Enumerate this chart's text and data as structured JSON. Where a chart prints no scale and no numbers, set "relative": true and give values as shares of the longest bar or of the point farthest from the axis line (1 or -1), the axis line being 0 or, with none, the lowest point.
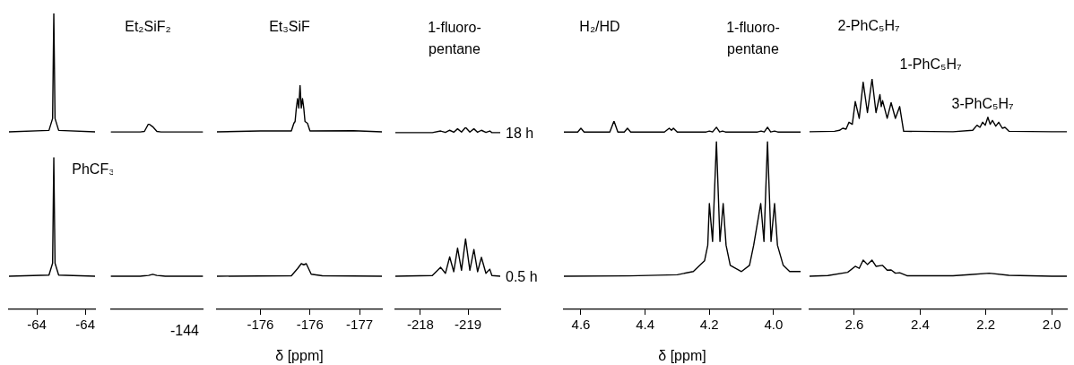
{
  "chart_data": [
    {
      "type": "line",
      "relative": true,
      "xlim": [
        -63.57,
        -64.28
      ],
      "xticks": [
        {
          "value": -63.8,
          "label": "-64"
        },
        {
          "value": -64.2,
          "label": "-64"
        }
      ],
      "annotations": [
        "PhCF₃"
      ],
      "series": [
        {
          "color": "#000000",
          "x": [
            -63.57,
            -63.9,
            -63.93,
            -63.94,
            -63.95,
            -63.98,
            -64.28
          ],
          "values": [
            0.6,
            0.605,
            0.645,
            1,
            0.645,
            0.605,
            0.6
          ]
        },
        {
          "color": "#000000",
          "x": [
            -63.57,
            -63.9,
            -63.93,
            -63.94,
            -63.95,
            -63.98,
            -64.28
          ],
          "values": [
            0.112,
            0.116,
            0.156,
            0.512,
            0.156,
            0.116,
            0.112
          ]
        }
      ]
    },
    {
      "type": "line",
      "relative": true,
      "categories": [
        null,
        null,
        null,
        null,
        null,
        null,
        null,
        null,
        null,
        null,
        null,
        null,
        null,
        null,
        null,
        null,
        null,
        null,
        null,
        null,
        null,
        null,
        null
      ],
      "annotations": [
        "Et₂SiF₂",
        "-144"
      ],
      "series": [
        {
          "color": "#000000",
          "values": [
            0.956,
            0.956,
            0.956,
            0.956,
            0.956,
            0.956,
            0.956,
            0.956,
            0.959,
            1,
            0.984,
            0.959,
            0.956,
            0.956,
            0.956,
            0.956,
            0.956,
            0.956,
            0.956,
            0.956,
            0.956,
            0.956,
            0.956
          ]
        },
        {
          "color": "#000000",
          "values": [
            0.179,
            0.179,
            0.179,
            0.179,
            0.179,
            0.179,
            0.179,
            0.179,
            0.181,
            0.183,
            0.189,
            0.183,
            0.181,
            0.179,
            0.179,
            0.179,
            0.179,
            0.179,
            0.179,
            0.179,
            0.179,
            0.179,
            0.179
          ]
        }
      ]
    },
    {
      "type": "line",
      "relative": true,
      "xlim": [
        -175.45,
        -176.78
      ],
      "xlabel": "δ [ppm]",
      "xticks": [
        {
          "value": -175.8,
          "label": "-176"
        },
        {
          "value": -176.2,
          "label": "-176"
        },
        {
          "value": -176.6,
          "label": "-177"
        }
      ],
      "annotations": [
        "Et₃SiF"
      ],
      "series": [
        {
          "color": "#000000",
          "x": [
            -175.45,
            -175.8,
            -176.05,
            -176.07,
            -176.08,
            -176.09,
            -176.1,
            -176.11,
            -176.12,
            -176.13,
            -176.14,
            -176.15,
            -176.16,
            -176.18,
            -176.2,
            -176.55,
            -176.78
          ],
          "values": [
            0.792,
            0.796,
            0.796,
            0.83,
            0.838,
            0.898,
            0.94,
            0.898,
            1,
            0.898,
            0.94,
            0.898,
            0.838,
            0.83,
            0.796,
            0.797,
            0.792
          ]
        },
        {
          "color": "#000000",
          "x": [
            -175.45,
            -176.05,
            -176.1,
            -176.13,
            -176.15,
            -176.17,
            -176.21,
            -176.3,
            -176.78
          ],
          "values": [
            0.148,
            0.15,
            0.182,
            0.204,
            0.199,
            0.204,
            0.157,
            0.15,
            0.148
          ]
        }
      ]
    },
    {
      "type": "line",
      "relative": true,
      "xlim": [
        -218.19,
        -219.07
      ],
      "xticks": [
        {
          "value": -218.4,
          "label": "-218"
        },
        {
          "value": -218.8,
          "label": "-219"
        }
      ],
      "annotations": [
        "1-fluoro-\npentane"
      ],
      "series": [
        {
          "name": "18 h",
          "color": "#000000",
          "x": [
            -218.19,
            -218.5,
            -218.57,
            -218.61,
            -218.646,
            -218.68,
            -218.712,
            -218.745,
            -218.779,
            -218.815,
            -218.849,
            -218.88,
            -218.912,
            -218.95,
            -218.982,
            -219.0,
            -219.07
          ],
          "values": [
            0.971,
            0.971,
            0.98,
            0.972,
            0.984,
            0.973,
            0.992,
            0.974,
            1,
            0.974,
            0.992,
            0.973,
            0.984,
            0.972,
            0.98,
            0.971,
            0.971
          ]
        },
        {
          "name": "0.5 h",
          "color": "#000000",
          "x": [
            -218.19,
            -218.5,
            -218.57,
            -218.61,
            -218.646,
            -218.68,
            -218.712,
            -218.745,
            -218.779,
            -218.815,
            -218.849,
            -218.88,
            -218.912,
            -218.95,
            -218.982,
            -219.0,
            -219.07
          ],
          "values": [
            0.182,
            0.186,
            0.231,
            0.198,
            0.288,
            0.207,
            0.337,
            0.215,
            0.387,
            0.215,
            0.329,
            0.207,
            0.286,
            0.198,
            0.221,
            0.186,
            0.182
          ]
        }
      ]
    },
    {
      "type": "line",
      "relative": true,
      "xlim": [
        4.653,
        3.916
      ],
      "xlabel": "δ [ppm]",
      "xticks": [
        {
          "value": 4.6,
          "label": "4.6"
        },
        {
          "value": 4.4,
          "label": "4.4"
        },
        {
          "value": 4.2,
          "label": "4.2"
        },
        {
          "value": 4.0,
          "label": "4.0"
        }
      ],
      "annotations": [
        "H₂/HD",
        "1-fluoro-\npentane"
      ],
      "series": [
        {
          "color": "#000000",
          "x": [
            4.653,
            4.61,
            4.6,
            4.59,
            4.51,
            4.497,
            4.485,
            4.465,
            4.455,
            4.445,
            4.34,
            4.325,
            4.318,
            4.312,
            4.3,
            4.21,
            4.2,
            4.19,
            4.178,
            4.168,
            4.159,
            4.15,
            4.05,
            4.039,
            4.029,
            4.019,
            4.009,
            3.997,
            3.987,
            3.916
          ],
          "values": [
            0.942,
            0.942,
            0.962,
            0.942,
            0.942,
            1,
            0.942,
            0.942,
            0.962,
            0.942,
            0.942,
            0.962,
            0.951,
            0.962,
            0.942,
            0.942,
            0.947,
            0.942,
            0.967,
            0.942,
            0.947,
            0.942,
            0.942,
            0.947,
            0.942,
            0.967,
            0.942,
            0.947,
            0.942,
            0.942
          ]
        },
        {
          "color": "#000000",
          "x": [
            4.653,
            4.45,
            4.3,
            4.25,
            4.215,
            4.205,
            4.2,
            4.19,
            4.178,
            4.167,
            4.157,
            4.148,
            4.135,
            4.1,
            4.075,
            4.062,
            4.04,
            4.03,
            4.019,
            4.008,
            3.997,
            3.988,
            3.97,
            3.95,
            3.916
          ],
          "values": [
            0.176,
            0.178,
            0.184,
            0.201,
            0.258,
            0.341,
            0.562,
            0.361,
            0.89,
            0.361,
            0.562,
            0.341,
            0.234,
            0.201,
            0.234,
            0.341,
            0.562,
            0.361,
            0.89,
            0.361,
            0.562,
            0.341,
            0.234,
            0.201,
            0.201
          ]
        }
      ]
    },
    {
      "type": "line",
      "relative": true,
      "xlim": [
        2.736,
        1.954
      ],
      "xticks": [
        {
          "value": 2.6,
          "label": "2.6"
        },
        {
          "value": 2.4,
          "label": "2.4"
        },
        {
          "value": 2.2,
          "label": "2.2"
        },
        {
          "value": 2.0,
          "label": "2.0"
        }
      ],
      "annotations": [
        "2-PhC₅H₇",
        "1-PhC₅H₇",
        "3-PhC₅H₇"
      ],
      "series": [
        {
          "color": "#000000",
          "x": [
            2.736,
            2.66,
            2.645,
            2.635,
            2.625,
            2.616,
            2.606,
            2.597,
            2.585,
            2.573,
            2.56,
            2.546,
            2.534,
            2.522,
            2.518,
            2.514,
            2.5,
            2.488,
            2.475,
            2.462,
            2.45,
            2.3,
            2.24,
            2.227,
            2.218,
            2.21,
            2.202,
            2.194,
            2.187,
            2.18,
            2.17,
            2.161,
            2.15,
            2.142,
            2.13,
            2.0,
            1.954
          ],
          "values": [
            0.771,
            0.773,
            0.777,
            0.786,
            0.782,
            0.812,
            0.803,
            0.902,
            0.829,
            0.986,
            0.854,
            1,
            0.854,
            0.932,
            0.88,
            0.906,
            0.829,
            0.897,
            0.829,
            0.88,
            0.773,
            0.771,
            0.777,
            0.799,
            0.79,
            0.812,
            0.799,
            0.834,
            0.803,
            0.82,
            0.795,
            0.812,
            0.786,
            0.79,
            0.773,
            0.771,
            0.771
          ]
        },
        {
          "color": "#000000",
          "x": [
            2.736,
            2.68,
            2.62,
            2.597,
            2.585,
            2.573,
            2.56,
            2.546,
            2.534,
            2.514,
            2.5,
            2.488,
            2.475,
            2.462,
            2.44,
            2.3,
            2.25,
            2.19,
            2.13,
            2.0,
            1.954
          ],
          "values": [
            0.144,
            0.147,
            0.161,
            0.187,
            0.178,
            0.214,
            0.195,
            0.214,
            0.187,
            0.191,
            0.17,
            0.171,
            0.157,
            0.159,
            0.146,
            0.146,
            0.151,
            0.157,
            0.148,
            0.144,
            0.144
          ]
        }
      ]
    }
  ]
}
